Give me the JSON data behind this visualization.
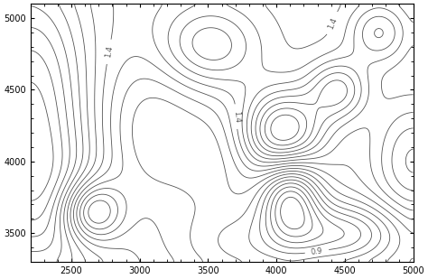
{
  "xlim": [
    2200,
    5000
  ],
  "ylim": [
    3300,
    5100
  ],
  "xticks": [
    2500,
    3000,
    3500,
    4000,
    4500,
    5000
  ],
  "yticks": [
    3500,
    4000,
    4500,
    5000
  ],
  "contour_levels": 20,
  "label_levels": [
    0.9,
    1.4
  ],
  "line_color": "#555555",
  "background_color": "#ffffff",
  "figsize": [
    4.74,
    3.09
  ],
  "dpi": 100
}
